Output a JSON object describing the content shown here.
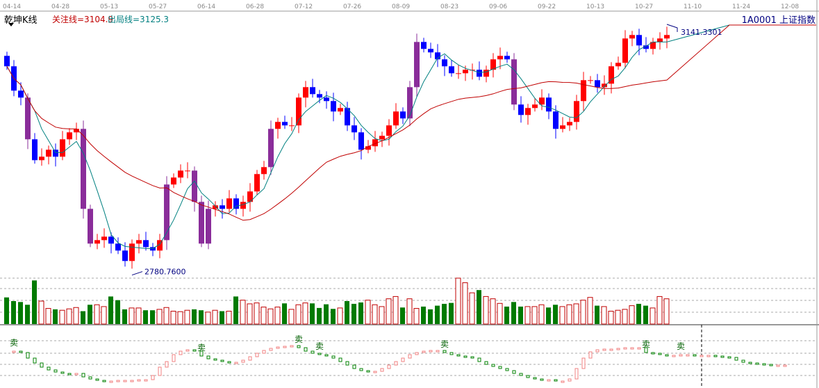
{
  "header": {
    "title": "乾坤K线",
    "ma_focus": "关注线=3104.9",
    "ma_exit": "出局线=3125.3",
    "index_label": "1A0001  上证指数"
  },
  "date_ticks": [
    "04-14",
    "04-28",
    "05-13",
    "05-27",
    "06-14",
    "06-28",
    "07-12",
    "07-26",
    "08-09",
    "08-23",
    "09-06",
    "09-22",
    "10-13",
    "10-27",
    "11-10",
    "11-24",
    "12-08"
  ],
  "price_labels": {
    "high": "3141.3301",
    "low": "2780.7600"
  },
  "indicator": {
    "signal_label": "卖",
    "sell_indices": [
      0,
      27,
      41,
      44,
      62,
      91,
      96
    ],
    "values": [
      90,
      86,
      70,
      56,
      44,
      36,
      30,
      26,
      24,
      26,
      16,
      10,
      6,
      4,
      4,
      6,
      6,
      6,
      8,
      8,
      20,
      44,
      60,
      80,
      90,
      94,
      90,
      76,
      68,
      64,
      60,
      56,
      58,
      64,
      74,
      84,
      92,
      98,
      102,
      104,
      106,
      100,
      90,
      84,
      80,
      76,
      70,
      60,
      50,
      40,
      34,
      30,
      32,
      40,
      50,
      60,
      70,
      80,
      86,
      90,
      92,
      92,
      86,
      80,
      76,
      74,
      70,
      60,
      52,
      46,
      40,
      34,
      26,
      20,
      14,
      10,
      8,
      8,
      4,
      4,
      10,
      40,
      70,
      88,
      94,
      96,
      96,
      98,
      100,
      100,
      100,
      86,
      84,
      80,
      78,
      78,
      80,
      80,
      78,
      78,
      78,
      76,
      74,
      72,
      64,
      58,
      56,
      54,
      52,
      50,
      50,
      50
    ]
  },
  "chart_data": {
    "type": "candlestick",
    "closes": [
      3081,
      3046,
      3036,
      2976,
      2946,
      2951,
      2961,
      2951,
      2976,
      2986,
      2991,
      2876,
      2826,
      2831,
      2836,
      2826,
      2816,
      2801,
      2826,
      2831,
      2821,
      2816,
      2831,
      2911,
      2921,
      2931,
      2931,
      2886,
      2826,
      2876,
      2881,
      2876,
      2891,
      2876,
      2886,
      2901,
      2926,
      2936,
      2991,
      3001,
      2996,
      2996,
      3036,
      3051,
      3041,
      3036,
      3031,
      3016,
      3021,
      2996,
      2986,
      2961,
      2966,
      2976,
      2981,
      2996,
      3016,
      3006,
      3051,
      3116,
      3106,
      3101,
      3091,
      3081,
      3071,
      3071,
      3076,
      3076,
      3066,
      3076,
      3091,
      3096,
      3091,
      3026,
      3011,
      3021,
      3026,
      3036,
      3016,
      2991,
      2996,
      3001,
      3031,
      3061,
      3061,
      3051,
      3056,
      3081,
      3086,
      3121,
      3126,
      3111,
      3106,
      3116,
      3121,
      3126
    ],
    "volumes": [
      58,
      50,
      48,
      42,
      95,
      50,
      34,
      32,
      30,
      33,
      36,
      28,
      42,
      42,
      38,
      60,
      52,
      32,
      35,
      35,
      30,
      30,
      32,
      36,
      28,
      27,
      30,
      32,
      30,
      26,
      30,
      28,
      28,
      60,
      52,
      44,
      46,
      37,
      33,
      37,
      45,
      32,
      42,
      46,
      45,
      35,
      43,
      33,
      35,
      50,
      44,
      47,
      52,
      42,
      38,
      55,
      60,
      36,
      55,
      34,
      38,
      32,
      40,
      44,
      46,
      100,
      90,
      68,
      74,
      60,
      55,
      45,
      38,
      48,
      38,
      38,
      38,
      42,
      36,
      42,
      38,
      42,
      44,
      52,
      58,
      40,
      38,
      28,
      30,
      32,
      40,
      44,
      40,
      35,
      60,
      55
    ],
    "ylim": [
      2780.76,
      3141.33
    ],
    "colors": {
      "up": "#ff0000",
      "down": "#0000ff",
      "big": "#8a2d9a",
      "vol_down": "#007a00",
      "ma_fast": "#008080",
      "ma_slow": "#c00000"
    }
  }
}
